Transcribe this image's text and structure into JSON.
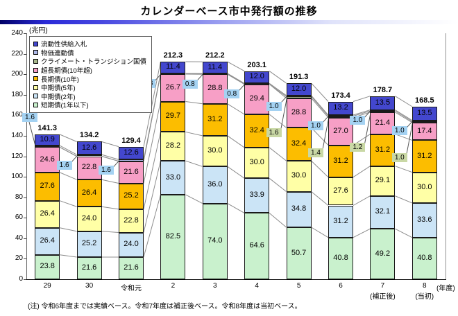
{
  "title": "カレンダーベース市中発行額の推移",
  "y_axis": {
    "unit": "(兆円)",
    "min": 0,
    "max": 240,
    "step": 20
  },
  "x_axis": {
    "unit": "(年度)"
  },
  "note": "(注) 令和6年度までは実績ベース。令和7年度は補正後ベース。令和8年度は当初ベース。",
  "chart_data": {
    "type": "bar",
    "stacked": true,
    "title": "カレンダーベース市中発行額の推移",
    "ylabel": "(兆円)",
    "xlabel": "(年度)",
    "ylim": [
      0,
      240
    ],
    "ytick_step": 20,
    "grid": false,
    "legend_position": "top-left",
    "categories": [
      "29",
      "30",
      "令和元",
      "2",
      "3",
      "4",
      "5",
      "6",
      "7",
      "8"
    ],
    "category_sublabels": [
      "",
      "",
      "",
      "",
      "",
      "",
      "",
      "",
      "(補正後)",
      "(当初)"
    ],
    "totals": [
      141.3,
      134.2,
      129.4,
      212.3,
      212.2,
      203.1,
      191.3,
      173.4,
      178.7,
      168.5
    ],
    "series": [
      {
        "name": "短期債(1年以下)",
        "color": "#C9F1CD",
        "values": [
          23.8,
          21.6,
          21.6,
          82.5,
          74.0,
          64.6,
          50.7,
          40.8,
          49.2,
          40.8
        ]
      },
      {
        "name": "中期債(2年)",
        "color": "#CBE4F6",
        "values": [
          26.4,
          25.2,
          24.0,
          33.0,
          36.0,
          33.9,
          34.8,
          31.2,
          32.1,
          33.6
        ]
      },
      {
        "name": "中期債(5年)",
        "color": "#FFFFA6",
        "values": [
          26.4,
          24.0,
          22.8,
          28.2,
          30.0,
          30.0,
          30.0,
          27.6,
          29.1,
          30.0
        ]
      },
      {
        "name": "長期債(10年)",
        "color": "#FCBD00",
        "values": [
          27.6,
          26.4,
          25.2,
          29.7,
          31.2,
          32.4,
          32.4,
          31.2,
          31.2,
          31.2
        ]
      },
      {
        "name": "超長期債(10年超)",
        "color": "#F79FC6",
        "values": [
          24.6,
          22.8,
          21.6,
          26.7,
          28.8,
          29.4,
          28.8,
          27.0,
          21.4,
          17.4
        ]
      },
      {
        "name": "クライメート・トランジション国債",
        "color": "#A9B88C",
        "callout": true,
        "callout_bg": "#C9D8A5",
        "values": [
          0,
          0,
          0,
          0,
          0,
          0,
          1.6,
          1.4,
          1.2,
          1.0
        ]
      },
      {
        "name": "物価連動債",
        "color": "#AEB9E8",
        "callout": true,
        "callout_bg": "#A4D2F2",
        "values": [
          1.6,
          1.6,
          1.6,
          0.8,
          0.8,
          0.8,
          1.0,
          1.0,
          1.0,
          1.0
        ]
      },
      {
        "name": "流動性供給入札",
        "color": "#4347CE",
        "values": [
          10.9,
          12.6,
          12.6,
          11.4,
          11.4,
          12.0,
          12.0,
          13.2,
          13.5,
          13.5
        ]
      }
    ]
  }
}
